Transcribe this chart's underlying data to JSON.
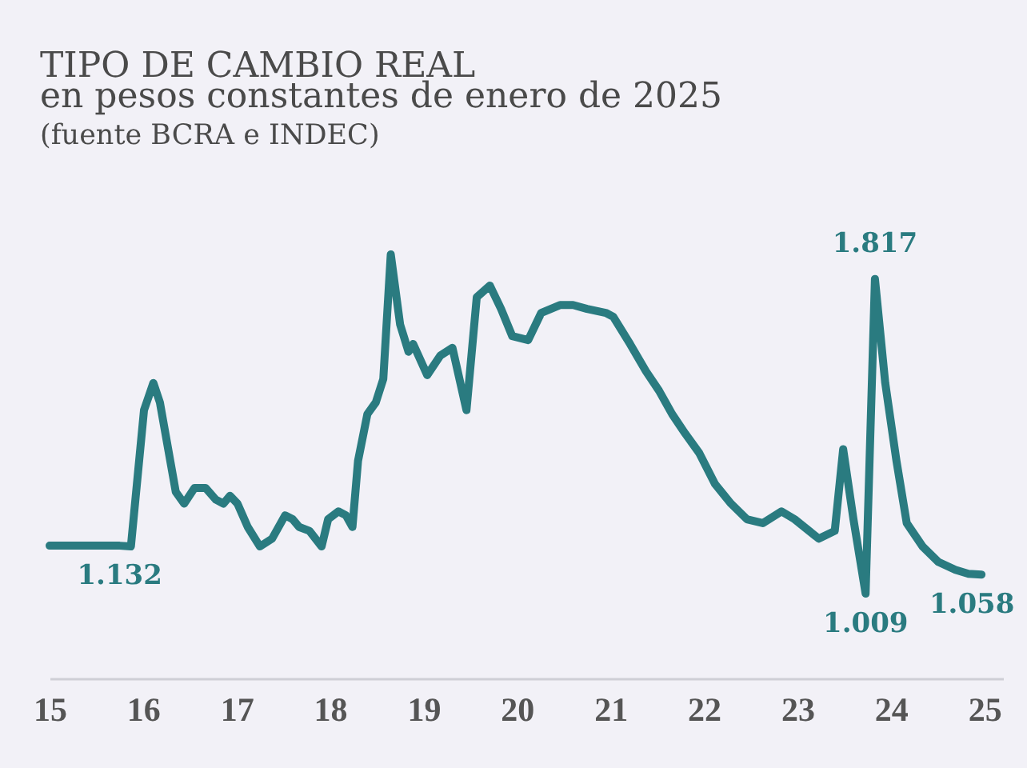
{
  "chart_data": {
    "type": "line",
    "title": "TIPO DE CAMBIO REAL",
    "subtitle": "en pesos constantes de enero de 2025",
    "annotations": [
      "(fuente BCRA e INDEC)"
    ],
    "x": [
      15.0,
      15.4,
      15.75,
      15.87,
      16.01,
      16.11,
      16.18,
      16.35,
      16.44,
      16.55,
      16.67,
      16.78,
      16.86,
      16.93,
      17.01,
      17.12,
      17.25,
      17.38,
      17.52,
      17.6,
      17.67,
      17.78,
      17.91,
      17.98,
      18.09,
      18.17,
      18.24,
      18.3,
      18.4,
      18.49,
      18.57,
      18.65,
      18.75,
      18.84,
      18.89,
      19.04,
      19.18,
      19.31,
      19.46,
      19.57,
      19.71,
      19.83,
      19.95,
      20.12,
      20.26,
      20.46,
      20.6,
      20.75,
      20.95,
      21.03,
      21.21,
      21.38,
      21.52,
      21.66,
      21.8,
      21.95,
      22.12,
      22.29,
      22.46,
      22.63,
      22.83,
      22.97,
      23.23,
      23.4,
      23.49,
      23.6,
      23.73,
      23.83,
      23.94,
      24.06,
      24.17,
      24.34,
      24.51,
      24.69,
      24.83,
      24.97
    ],
    "xlim": [
      15,
      25.2
    ],
    "xticks": [
      15,
      16,
      17,
      18,
      19,
      20,
      21,
      22,
      23,
      24,
      25
    ],
    "tick_labels": "x",
    "line_style": "solid",
    "series": [
      {
        "color": "#2a7b80",
        "values": [
          1132,
          1132,
          1132,
          1130,
          1480,
          1550,
          1500,
          1270,
          1240,
          1280,
          1280,
          1250,
          1240,
          1260,
          1240,
          1180,
          1130,
          1150,
          1210,
          1200,
          1180,
          1170,
          1130,
          1200,
          1220,
          1210,
          1180,
          1350,
          1470,
          1500,
          1560,
          1880,
          1700,
          1630,
          1650,
          1570,
          1620,
          1640,
          1480,
          1770,
          1800,
          1740,
          1670,
          1660,
          1730,
          1750,
          1750,
          1740,
          1730,
          1720,
          1650,
          1580,
          1530,
          1470,
          1420,
          1370,
          1290,
          1240,
          1200,
          1190,
          1220,
          1200,
          1150,
          1170,
          1380,
          1200,
          1009,
          1817,
          1550,
          1350,
          1190,
          1130,
          1090,
          1070,
          1060,
          1058
        ],
        "value_labels": [
          null,
          null,
          "1.132",
          null,
          null,
          null,
          null,
          null,
          null,
          null,
          null,
          null,
          null,
          null,
          null,
          null,
          null,
          null,
          null,
          null,
          null,
          null,
          null,
          null,
          null,
          null,
          null,
          null,
          null,
          null,
          null,
          null,
          null,
          null,
          null,
          null,
          null,
          null,
          null,
          null,
          null,
          null,
          null,
          null,
          null,
          null,
          null,
          null,
          null,
          null,
          null,
          null,
          null,
          null,
          null,
          null,
          null,
          null,
          null,
          null,
          null,
          null,
          null,
          null,
          null,
          null,
          "1.009",
          "1.817",
          null,
          null,
          null,
          null,
          null,
          null,
          null,
          "1.058"
        ]
      }
    ]
  }
}
